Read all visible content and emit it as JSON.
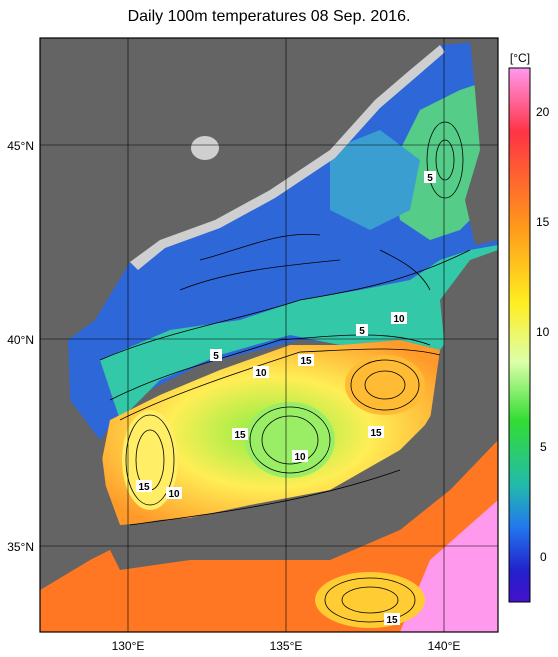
{
  "title": "Daily 100m temperatures 08 Sep. 2016.",
  "axes": {
    "lat_labels": [
      "45°N",
      "40°N",
      "35°N"
    ],
    "lon_labels": [
      "130°E",
      "135°E",
      "140°E"
    ]
  },
  "colorbar": {
    "unit": "[°C]",
    "ticks": [
      "20",
      "15",
      "10",
      "5",
      "0"
    ],
    "colors": [
      "#ff99ee",
      "#ff3344",
      "#ff9a1a",
      "#ffee22",
      "#ddffaa",
      "#33dd33",
      "#22bbaa",
      "#2277ee",
      "#2222cc",
      "#4411cc"
    ]
  },
  "contour_labels": [
    "5",
    "10",
    "5",
    "15",
    "5",
    "10",
    "15",
    "10",
    "15",
    "15",
    "10",
    "15"
  ],
  "colors": {
    "land": "#646464",
    "coast_shelf": "#cfcfcf",
    "cold_water": "#2e68d8",
    "warm_water": "#ff9a2a"
  }
}
